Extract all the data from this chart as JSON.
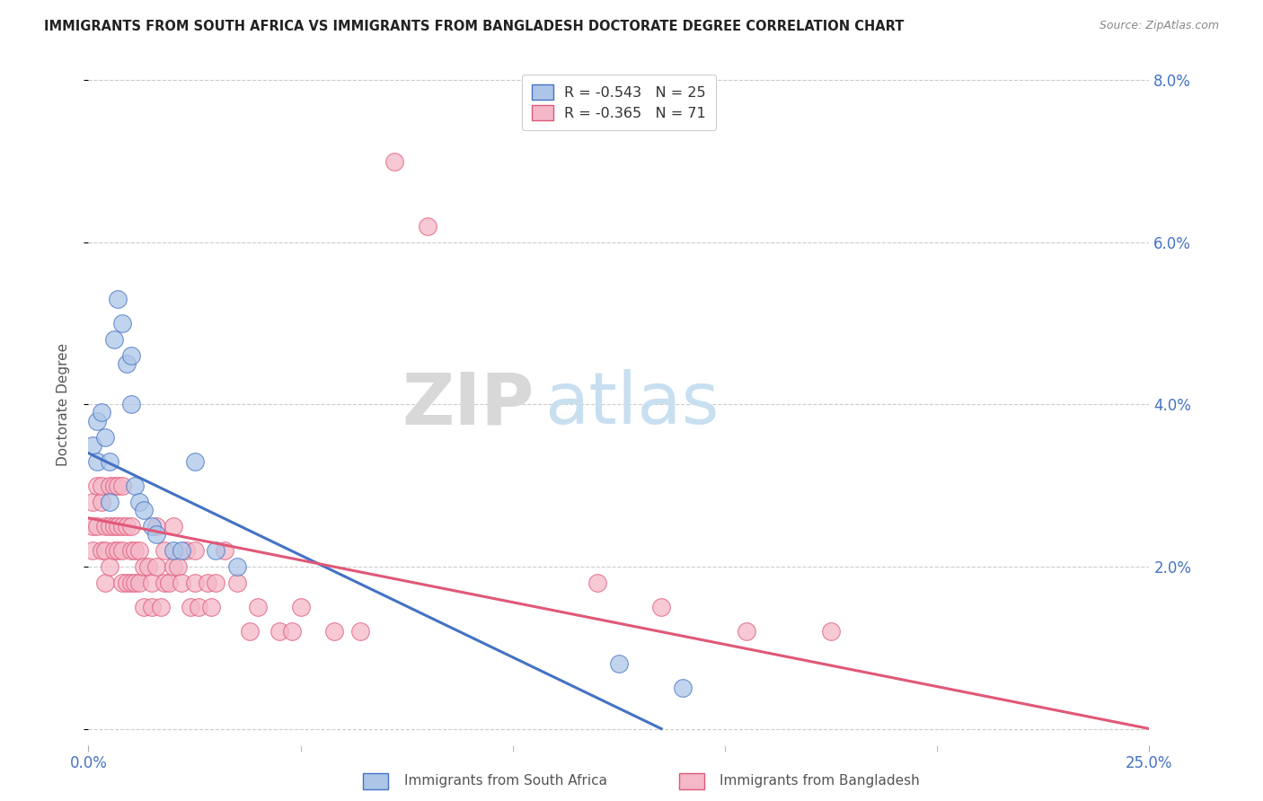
{
  "title": "IMMIGRANTS FROM SOUTH AFRICA VS IMMIGRANTS FROM BANGLADESH DOCTORATE DEGREE CORRELATION CHART",
  "source": "Source: ZipAtlas.com",
  "ylabel": "Doctorate Degree",
  "xlim": [
    0.0,
    0.25
  ],
  "ylim": [
    -0.002,
    0.082
  ],
  "yticks_right": [
    0.0,
    0.02,
    0.04,
    0.06,
    0.08
  ],
  "ytick_labels_right": [
    "",
    "2.0%",
    "4.0%",
    "6.0%",
    "8.0%"
  ],
  "xticks": [
    0.0,
    0.25
  ],
  "xtick_labels": [
    "0.0%",
    "25.0%"
  ],
  "blue_label": "Immigrants from South Africa",
  "pink_label": "Immigrants from Bangladesh",
  "blue_R": "-0.543",
  "blue_N": "25",
  "pink_R": "-0.365",
  "pink_N": "71",
  "blue_color": "#adc6e8",
  "blue_line_color": "#4472c4",
  "pink_color": "#f4b8c8",
  "pink_line_color": "#e05878",
  "watermark_zip": "ZIP",
  "watermark_atlas": "atlas",
  "title_color": "#222222",
  "axis_label_color": "#4472c4",
  "blue_scatter_x": [
    0.001,
    0.002,
    0.002,
    0.003,
    0.004,
    0.005,
    0.005,
    0.006,
    0.007,
    0.008,
    0.009,
    0.01,
    0.01,
    0.011,
    0.012,
    0.013,
    0.015,
    0.016,
    0.02,
    0.022,
    0.025,
    0.03,
    0.035,
    0.125,
    0.14
  ],
  "blue_scatter_y": [
    0.035,
    0.038,
    0.033,
    0.039,
    0.036,
    0.033,
    0.028,
    0.048,
    0.053,
    0.05,
    0.045,
    0.046,
    0.04,
    0.03,
    0.028,
    0.027,
    0.025,
    0.024,
    0.022,
    0.022,
    0.033,
    0.022,
    0.02,
    0.008,
    0.005
  ],
  "pink_scatter_x": [
    0.001,
    0.001,
    0.001,
    0.002,
    0.002,
    0.003,
    0.003,
    0.003,
    0.004,
    0.004,
    0.004,
    0.005,
    0.005,
    0.005,
    0.006,
    0.006,
    0.006,
    0.007,
    0.007,
    0.007,
    0.008,
    0.008,
    0.008,
    0.008,
    0.009,
    0.009,
    0.01,
    0.01,
    0.01,
    0.011,
    0.011,
    0.012,
    0.012,
    0.013,
    0.013,
    0.014,
    0.015,
    0.015,
    0.016,
    0.016,
    0.017,
    0.018,
    0.018,
    0.019,
    0.02,
    0.02,
    0.021,
    0.022,
    0.023,
    0.024,
    0.025,
    0.025,
    0.026,
    0.028,
    0.029,
    0.03,
    0.032,
    0.035,
    0.038,
    0.04,
    0.045,
    0.048,
    0.05,
    0.058,
    0.064,
    0.072,
    0.08,
    0.12,
    0.135,
    0.155,
    0.175
  ],
  "pink_scatter_y": [
    0.025,
    0.022,
    0.028,
    0.03,
    0.025,
    0.022,
    0.028,
    0.03,
    0.025,
    0.022,
    0.018,
    0.025,
    0.02,
    0.03,
    0.03,
    0.025,
    0.022,
    0.03,
    0.025,
    0.022,
    0.03,
    0.025,
    0.022,
    0.018,
    0.025,
    0.018,
    0.025,
    0.022,
    0.018,
    0.022,
    0.018,
    0.022,
    0.018,
    0.02,
    0.015,
    0.02,
    0.018,
    0.015,
    0.02,
    0.025,
    0.015,
    0.022,
    0.018,
    0.018,
    0.02,
    0.025,
    0.02,
    0.018,
    0.022,
    0.015,
    0.018,
    0.022,
    0.015,
    0.018,
    0.015,
    0.018,
    0.022,
    0.018,
    0.012,
    0.015,
    0.012,
    0.012,
    0.015,
    0.012,
    0.012,
    0.07,
    0.062,
    0.018,
    0.015,
    0.012,
    0.012
  ],
  "blue_trend_x": [
    0.0,
    0.135
  ],
  "blue_trend_y": [
    0.034,
    0.0
  ],
  "pink_trend_x": [
    0.0,
    0.25
  ],
  "pink_trend_y": [
    0.026,
    0.0
  ]
}
